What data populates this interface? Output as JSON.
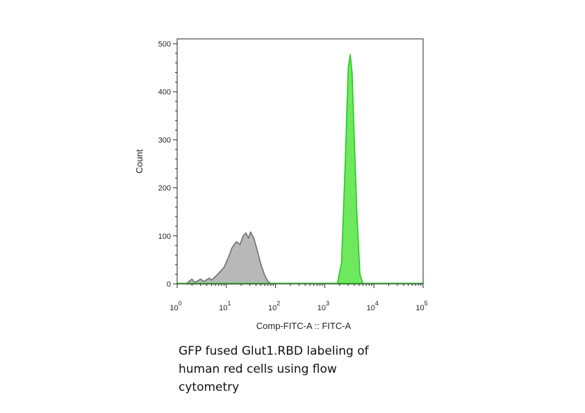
{
  "chart_data": {
    "type": "area",
    "xlabel": "Comp-FITC-A :: FITC-A",
    "ylabel": "Count",
    "x_scale": "log",
    "xlim": [
      1,
      100000
    ],
    "ylim": [
      0,
      510
    ],
    "y_ticks": [
      "0",
      "100",
      "200",
      "300",
      "400",
      "500"
    ],
    "x_tick_bases": [
      "10",
      "10",
      "10",
      "10",
      "10",
      "10"
    ],
    "x_tick_exponents": [
      "0",
      "1",
      "2",
      "3",
      "4",
      "5"
    ],
    "series": [
      {
        "color": "#b8b8b8",
        "edge": "#707070",
        "x": [
          1.5,
          2,
          2.3,
          3,
          3.5,
          4.5,
          5,
          7,
          9,
          11,
          13,
          16,
          19,
          22,
          25,
          28,
          31,
          36,
          42,
          50,
          60,
          70,
          80,
          90
        ],
        "values": [
          0,
          10,
          3,
          10,
          5,
          12,
          8,
          22,
          35,
          55,
          75,
          88,
          82,
          100,
          106,
          95,
          108,
          96,
          72,
          42,
          18,
          5,
          1,
          0
        ]
      },
      {
        "color": "#6ee85c",
        "edge": "#22cc22",
        "x": [
          1800,
          2200,
          2600,
          3000,
          3300,
          3600,
          4000,
          4500,
          5200,
          6000
        ],
        "values": [
          0,
          45,
          250,
          450,
          477,
          440,
          300,
          150,
          20,
          0
        ]
      }
    ]
  },
  "caption": {
    "lines": [
      "GFP fused Glut1.RBD labeling of",
      "human red cells using flow",
      "cytometry"
    ]
  }
}
